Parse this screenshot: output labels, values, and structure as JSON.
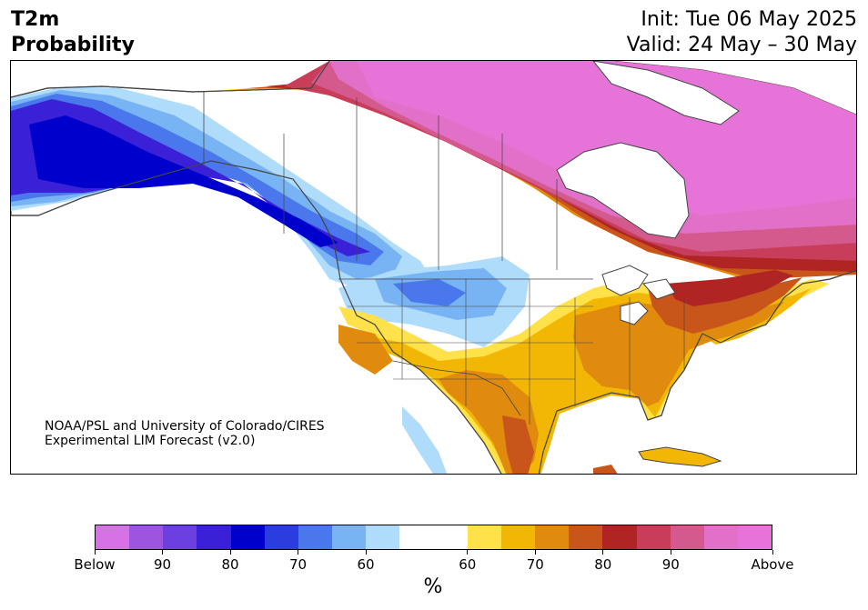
{
  "header": {
    "title_line1": "T2m",
    "title_line2": "Probability",
    "init": "Init: Tue 06 May 2025",
    "valid": "Valid: 24 May – 30 May"
  },
  "credit": {
    "line1": "NOAA/PSL and University of Colorado/CIRES",
    "line2": "Experimental LIM Forecast (v2.0)"
  },
  "colorbar": {
    "colors": [
      "#d672e6",
      "#9d55e0",
      "#6b3fe0",
      "#3a20d6",
      "#0000cd",
      "#2a3ee0",
      "#4a78ec",
      "#78b4f4",
      "#b0dcfc",
      "#ffffff",
      "#ffffff",
      "#ffe14a",
      "#f2b705",
      "#e08a0e",
      "#c8561a",
      "#b02424",
      "#c83e5a",
      "#d45a8e",
      "#e070c8",
      "#e674d8"
    ],
    "labels": [
      "Below",
      "90",
      "80",
      "70",
      "60",
      "60",
      "70",
      "80",
      "90",
      "Above"
    ],
    "unit": "%"
  }
}
